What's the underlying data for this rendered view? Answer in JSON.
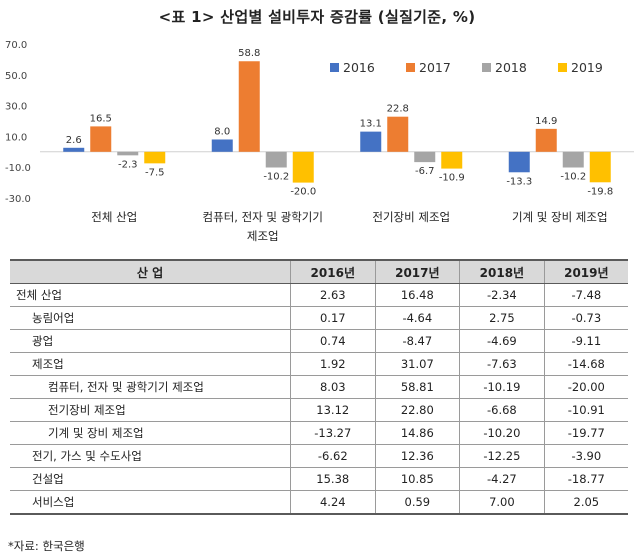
{
  "title": "<표 1> 산업별 설비투자 증감률 (실질기준, %)",
  "chart_data": {
    "type": "bar",
    "categories": [
      [
        "전체 산업"
      ],
      [
        "컴퓨터, 전자 및 광학기기",
        "제조업"
      ],
      [
        "전기장비 제조업"
      ],
      [
        "기계 및 장비 제조업"
      ]
    ],
    "series": [
      {
        "name": "2016",
        "color": "#4472c4",
        "values": [
          2.6,
          8.0,
          13.1,
          -13.3
        ]
      },
      {
        "name": "2017",
        "color": "#ed7d31",
        "values": [
          16.5,
          58.8,
          22.8,
          14.9
        ]
      },
      {
        "name": "2018",
        "color": "#a5a5a5",
        "values": [
          -2.3,
          -10.2,
          -6.7,
          -10.2
        ]
      },
      {
        "name": "2019",
        "color": "#ffc000",
        "values": [
          -7.5,
          -20.0,
          -10.9,
          -19.8
        ]
      }
    ],
    "ylim": [
      -30,
      70
    ],
    "yticks": [
      "70.0",
      "50.0",
      "30.0",
      "10.0",
      "-10.0",
      "-30.0"
    ],
    "ytick_values": [
      70,
      50,
      30,
      10,
      -10,
      -30
    ],
    "legend_position": "top-right",
    "grid": false
  },
  "table": {
    "headers": [
      "산 업",
      "2016년",
      "2017년",
      "2018년",
      "2019년"
    ],
    "rows": [
      {
        "label": "전체 산업",
        "level": 0,
        "values": [
          "2.63",
          "16.48",
          "-2.34",
          "-7.48"
        ]
      },
      {
        "label": "농림어업",
        "level": 1,
        "values": [
          "0.17",
          "-4.64",
          "2.75",
          "-0.73"
        ]
      },
      {
        "label": "광업",
        "level": 1,
        "values": [
          "0.74",
          "-8.47",
          "-4.69",
          "-9.11"
        ]
      },
      {
        "label": "제조업",
        "level": 1,
        "values": [
          "1.92",
          "31.07",
          "-7.63",
          "-14.68"
        ]
      },
      {
        "label": "컴퓨터, 전자 및 광학기기 제조업",
        "level": 2,
        "values": [
          "8.03",
          "58.81",
          "-10.19",
          "-20.00"
        ]
      },
      {
        "label": "전기장비 제조업",
        "level": 2,
        "values": [
          "13.12",
          "22.80",
          "-6.68",
          "-10.91"
        ]
      },
      {
        "label": "기계 및 장비 제조업",
        "level": 2,
        "values": [
          "-13.27",
          "14.86",
          "-10.20",
          "-19.77"
        ]
      },
      {
        "label": "전기, 가스 및 수도사업",
        "level": 1,
        "values": [
          "-6.62",
          "12.36",
          "-12.25",
          "-3.90"
        ]
      },
      {
        "label": "건설업",
        "level": 1,
        "values": [
          "15.38",
          "10.85",
          "-4.27",
          "-18.77"
        ]
      },
      {
        "label": "서비스업",
        "level": 1,
        "values": [
          "4.24",
          "0.59",
          "7.00",
          "2.05"
        ]
      }
    ]
  },
  "source": "*자료: 한국은행"
}
